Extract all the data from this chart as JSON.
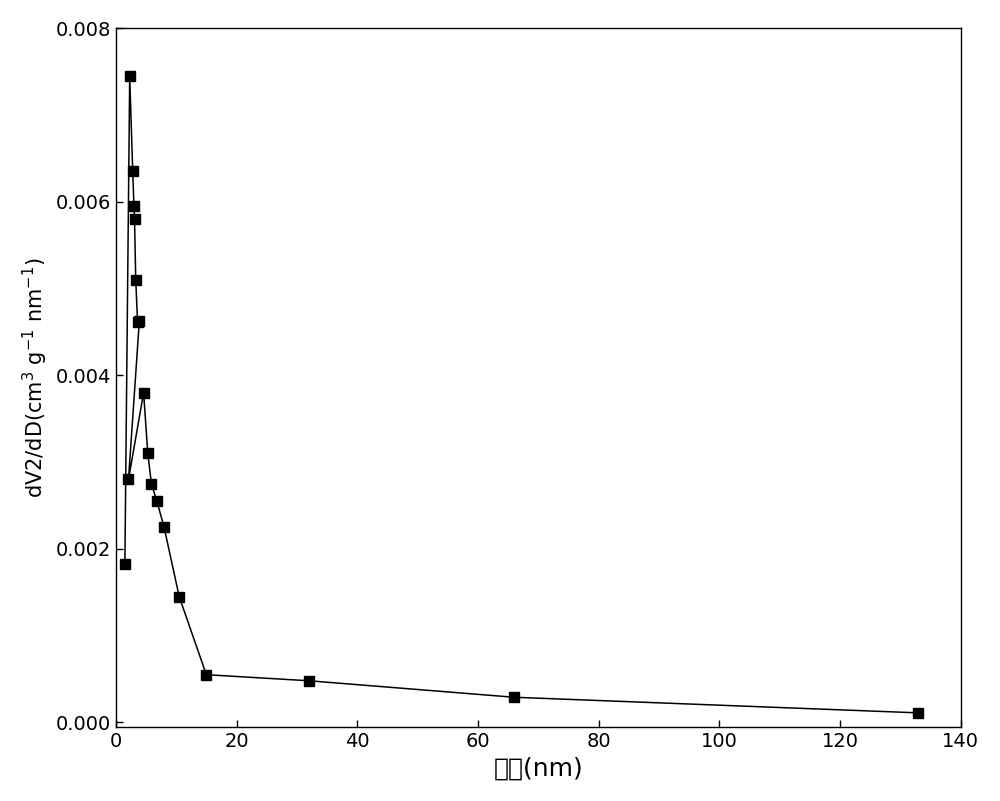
{
  "x": [
    1.5,
    2.3,
    2.8,
    3.0,
    3.1,
    3.3,
    3.6,
    3.9,
    2.1,
    4.6,
    5.3,
    5.9,
    6.8,
    8.0,
    10.5,
    15.0,
    32.0,
    66.0,
    133.0
  ],
  "y": [
    0.00183,
    0.00745,
    0.00635,
    0.00595,
    0.0058,
    0.0051,
    0.00462,
    0.00463,
    0.0028,
    0.0038,
    0.0031,
    0.00275,
    0.00255,
    0.00225,
    0.00145,
    0.00055,
    0.00048,
    0.00029,
    0.00011
  ],
  "xlabel": "孔径(nm)",
  "ylabel_line1": "dV2/dD(cm",
  "ylabel_sup1": "3",
  "ylabel_line2": " g",
  "ylabel_sup2": "-1",
  "ylabel_line3": " nm",
  "ylabel_sup3": "-1",
  "ylabel_full": "dV2/dD(cm$^{3}$ g$^{-1}$ nm$^{-1}$)",
  "xlim": [
    0,
    140
  ],
  "ylim": [
    -5e-05,
    0.008
  ],
  "xticks": [
    0,
    20,
    40,
    60,
    80,
    100,
    120,
    140
  ],
  "yticks": [
    0.0,
    0.002,
    0.004,
    0.006,
    0.008
  ],
  "line_color": "#000000",
  "marker": "s",
  "markersize": 7,
  "linewidth": 1.1,
  "linestyle": "-",
  "background_color": "#ffffff",
  "xlabel_fontsize": 18,
  "ylabel_fontsize": 15,
  "tick_fontsize": 14,
  "fig_width": 10.0,
  "fig_height": 8.01,
  "dpi": 100
}
